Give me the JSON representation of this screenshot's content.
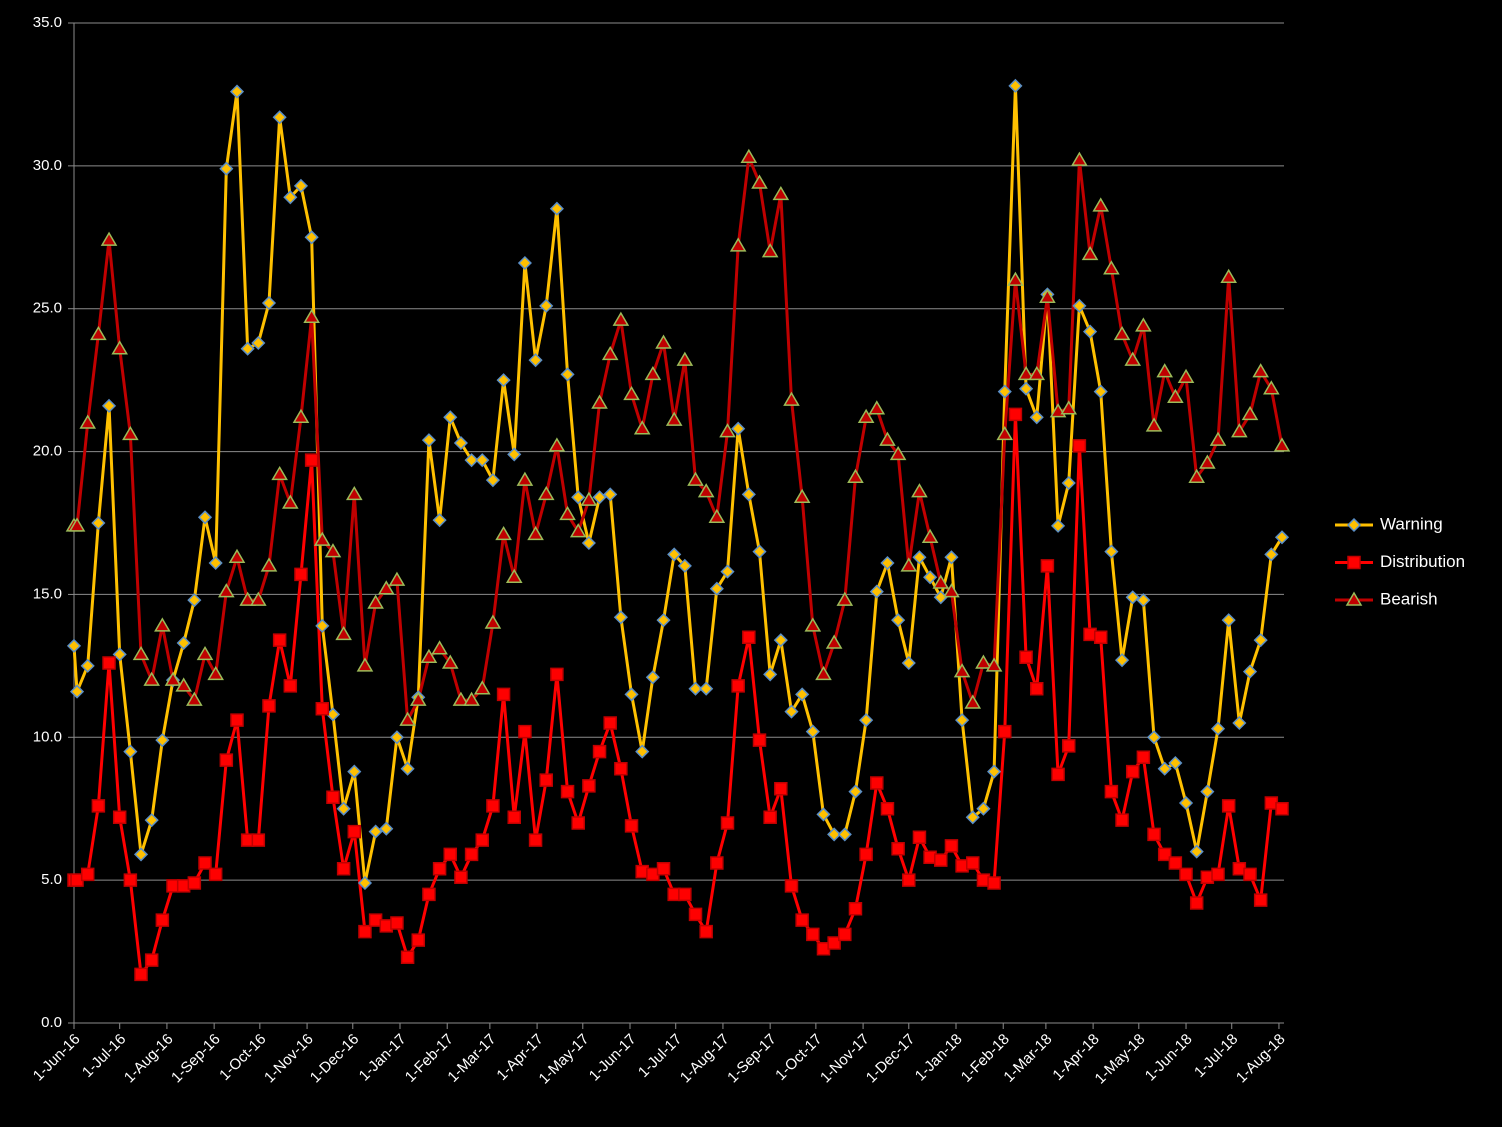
{
  "chart_data": {
    "type": "line",
    "x": [
      "2016-06-01",
      "2016-06-03",
      "2016-06-10",
      "2016-06-17",
      "2016-06-24",
      "2016-07-01",
      "2016-07-08",
      "2016-07-15",
      "2016-07-22",
      "2016-07-29",
      "2016-08-05",
      "2016-08-12",
      "2016-08-19",
      "2016-08-26",
      "2016-09-02",
      "2016-09-09",
      "2016-09-16",
      "2016-09-23",
      "2016-09-30",
      "2016-10-07",
      "2016-10-14",
      "2016-10-21",
      "2016-10-28",
      "2016-11-04",
      "2016-11-11",
      "2016-11-18",
      "2016-11-25",
      "2016-12-02",
      "2016-12-09",
      "2016-12-16",
      "2016-12-23",
      "2016-12-30",
      "2017-01-06",
      "2017-01-13",
      "2017-01-20",
      "2017-01-27",
      "2017-02-03",
      "2017-02-10",
      "2017-02-17",
      "2017-02-24",
      "2017-03-03",
      "2017-03-10",
      "2017-03-17",
      "2017-03-24",
      "2017-03-31",
      "2017-04-07",
      "2017-04-14",
      "2017-04-21",
      "2017-04-28",
      "2017-05-05",
      "2017-05-12",
      "2017-05-19",
      "2017-05-26",
      "2017-06-02",
      "2017-06-09",
      "2017-06-16",
      "2017-06-23",
      "2017-06-30",
      "2017-07-07",
      "2017-07-14",
      "2017-07-21",
      "2017-07-28",
      "2017-08-04",
      "2017-08-11",
      "2017-08-18",
      "2017-08-25",
      "2017-09-01",
      "2017-09-08",
      "2017-09-15",
      "2017-09-22",
      "2017-09-29",
      "2017-10-06",
      "2017-10-13",
      "2017-10-20",
      "2017-10-27",
      "2017-11-03",
      "2017-11-10",
      "2017-11-17",
      "2017-11-24",
      "2017-12-01",
      "2017-12-08",
      "2017-12-15",
      "2017-12-22",
      "2017-12-29",
      "2018-01-05",
      "2018-01-12",
      "2018-01-19",
      "2018-01-26",
      "2018-02-02",
      "2018-02-09",
      "2018-02-16",
      "2018-02-23",
      "2018-03-02",
      "2018-03-09",
      "2018-03-16",
      "2018-03-23",
      "2018-03-30",
      "2018-04-06",
      "2018-04-13",
      "2018-04-20",
      "2018-04-27",
      "2018-05-04",
      "2018-05-11",
      "2018-05-18",
      "2018-05-25",
      "2018-06-01",
      "2018-06-08",
      "2018-06-15",
      "2018-06-22",
      "2018-06-29",
      "2018-07-06",
      "2018-07-13",
      "2018-07-20",
      "2018-07-27",
      "2018-08-03"
    ],
    "series": [
      {
        "name": "Warning",
        "color": "#ffc000",
        "marker": "diamond",
        "marker_edge": "#5b8fc7",
        "values": [
          13.2,
          11.6,
          12.5,
          17.5,
          21.6,
          12.9,
          9.5,
          5.9,
          7.1,
          9.9,
          12.0,
          13.3,
          14.8,
          17.7,
          16.1,
          29.9,
          32.6,
          23.6,
          23.8,
          25.2,
          31.7,
          28.9,
          29.3,
          27.5,
          13.9,
          10.8,
          7.5,
          8.8,
          4.9,
          6.7,
          6.8,
          10.0,
          8.9,
          11.4,
          20.4,
          17.6,
          21.2,
          20.3,
          19.7,
          19.7,
          19.0,
          22.5,
          19.9,
          26.6,
          23.2,
          25.1,
          28.5,
          22.7,
          18.4,
          16.8,
          18.4,
          18.5,
          14.2,
          11.5,
          9.5,
          12.1,
          14.1,
          16.4,
          16.0,
          11.7,
          11.7,
          15.2,
          15.8,
          20.8,
          18.5,
          16.5,
          12.2,
          13.4,
          10.9,
          11.5,
          10.2,
          7.3,
          6.6,
          6.6,
          8.1,
          10.6,
          15.1,
          16.1,
          14.1,
          12.6,
          16.3,
          15.6,
          14.9,
          16.3,
          10.6,
          7.2,
          7.5,
          8.8,
          22.1,
          32.8,
          22.2,
          21.2,
          25.5,
          17.4,
          18.9,
          25.1,
          24.2,
          22.1,
          16.5,
          12.7,
          14.9,
          14.8,
          10.0,
          8.9,
          9.1,
          7.7,
          6.0,
          8.1,
          10.3,
          14.1,
          10.5,
          12.3,
          13.4,
          16.4,
          17.0
        ]
      },
      {
        "name": "Distribution",
        "color": "#ff0000",
        "marker": "square",
        "marker_edge": "#c00000",
        "values": [
          5.0,
          5.0,
          5.2,
          7.6,
          12.6,
          7.2,
          5.0,
          1.7,
          2.2,
          3.6,
          4.8,
          4.8,
          4.9,
          5.6,
          5.2,
          9.2,
          10.6,
          6.4,
          6.4,
          11.1,
          13.4,
          11.8,
          15.7,
          19.7,
          11.0,
          7.9,
          5.4,
          6.7,
          3.2,
          3.6,
          3.4,
          3.5,
          2.3,
          2.9,
          4.5,
          5.4,
          5.9,
          5.1,
          5.9,
          6.4,
          7.6,
          11.5,
          7.2,
          10.2,
          6.4,
          8.5,
          12.2,
          8.1,
          7.0,
          8.3,
          9.5,
          10.5,
          8.9,
          6.9,
          5.3,
          5.2,
          5.4,
          4.5,
          4.5,
          3.8,
          3.2,
          5.6,
          7.0,
          11.8,
          13.5,
          9.9,
          7.2,
          8.2,
          4.8,
          3.6,
          3.1,
          2.6,
          2.8,
          3.1,
          4.0,
          5.9,
          8.4,
          7.5,
          6.1,
          5.0,
          6.5,
          5.8,
          5.7,
          6.2,
          5.5,
          5.6,
          5.0,
          4.9,
          10.2,
          21.3,
          12.8,
          11.7,
          16.0,
          8.7,
          9.7,
          20.2,
          13.6,
          13.5,
          8.1,
          7.1,
          8.8,
          9.3,
          6.6,
          5.9,
          5.6,
          5.2,
          4.2,
          5.1,
          5.2,
          7.6,
          5.4,
          5.2,
          4.3,
          7.7,
          7.5
        ]
      },
      {
        "name": "Bearish",
        "color": "#c00000",
        "marker": "triangle",
        "marker_edge": "#9bbb59",
        "values": [
          17.4,
          17.4,
          21.0,
          24.1,
          27.4,
          23.6,
          20.6,
          12.9,
          12.0,
          13.9,
          12.0,
          11.8,
          11.3,
          12.9,
          12.2,
          15.1,
          16.3,
          14.8,
          14.8,
          16.0,
          19.2,
          18.2,
          21.2,
          24.7,
          16.9,
          16.5,
          13.6,
          18.5,
          12.5,
          14.7,
          15.2,
          15.5,
          10.6,
          11.3,
          12.8,
          13.1,
          12.6,
          11.3,
          11.3,
          11.7,
          14.0,
          17.1,
          15.6,
          19.0,
          17.1,
          18.5,
          20.2,
          17.8,
          17.2,
          18.3,
          21.7,
          23.4,
          24.6,
          22.0,
          20.8,
          22.7,
          23.8,
          21.1,
          23.2,
          19.0,
          18.6,
          17.7,
          20.7,
          27.2,
          30.3,
          29.4,
          27.0,
          29.0,
          21.8,
          18.4,
          13.9,
          12.2,
          13.3,
          14.8,
          19.1,
          21.2,
          21.5,
          20.4,
          19.9,
          16.0,
          18.6,
          17.0,
          15.4,
          15.1,
          12.3,
          11.2,
          12.6,
          12.5,
          20.6,
          26.0,
          22.7,
          22.7,
          25.4,
          21.4,
          21.5,
          30.2,
          26.9,
          28.6,
          26.4,
          24.1,
          23.2,
          24.4,
          20.9,
          22.8,
          21.9,
          22.6,
          19.1,
          19.6,
          20.4,
          26.1,
          20.7,
          21.3,
          22.8,
          22.2,
          20.2
        ]
      }
    ],
    "xlim": [
      "2016-06-01",
      "2018-08-03"
    ],
    "xticks": [
      {
        "value": "2016-06-01",
        "label": "1-Jun-16"
      },
      {
        "value": "2016-07-01",
        "label": "1-Jul-16"
      },
      {
        "value": "2016-08-01",
        "label": "1-Aug-16"
      },
      {
        "value": "2016-09-01",
        "label": "1-Sep-16"
      },
      {
        "value": "2016-10-01",
        "label": "1-Oct-16"
      },
      {
        "value": "2016-11-01",
        "label": "1-Nov-16"
      },
      {
        "value": "2016-12-01",
        "label": "1-Dec-16"
      },
      {
        "value": "2017-01-01",
        "label": "1-Jan-17"
      },
      {
        "value": "2017-02-01",
        "label": "1-Feb-17"
      },
      {
        "value": "2017-03-01",
        "label": "1-Mar-17"
      },
      {
        "value": "2017-04-01",
        "label": "1-Apr-17"
      },
      {
        "value": "2017-05-01",
        "label": "1-May-17"
      },
      {
        "value": "2017-06-01",
        "label": "1-Jun-17"
      },
      {
        "value": "2017-07-01",
        "label": "1-Jul-17"
      },
      {
        "value": "2017-08-01",
        "label": "1-Aug-17"
      },
      {
        "value": "2017-09-01",
        "label": "1-Sep-17"
      },
      {
        "value": "2017-10-01",
        "label": "1-Oct-17"
      },
      {
        "value": "2017-11-01",
        "label": "1-Nov-17"
      },
      {
        "value": "2017-12-01",
        "label": "1-Dec-17"
      },
      {
        "value": "2018-01-01",
        "label": "1-Jan-18"
      },
      {
        "value": "2018-02-01",
        "label": "1-Feb-18"
      },
      {
        "value": "2018-03-01",
        "label": "1-Mar-18"
      },
      {
        "value": "2018-04-01",
        "label": "1-Apr-18"
      },
      {
        "value": "2018-05-01",
        "label": "1-May-18"
      },
      {
        "value": "2018-06-01",
        "label": "1-Jun-18"
      },
      {
        "value": "2018-07-01",
        "label": "1-Jul-18"
      },
      {
        "value": "2018-08-01",
        "label": "1-Aug-18"
      }
    ],
    "ylim": [
      0,
      35
    ],
    "yticks": [
      {
        "value": 0,
        "label": "0.0"
      },
      {
        "value": 5,
        "label": "5.0"
      },
      {
        "value": 10,
        "label": "10.0"
      },
      {
        "value": 15,
        "label": "15.0"
      },
      {
        "value": 20,
        "label": "20.0"
      },
      {
        "value": 25,
        "label": "25.0"
      },
      {
        "value": 30,
        "label": "30.0"
      },
      {
        "value": 35,
        "label": "35.0"
      }
    ],
    "grid": true,
    "legend": "right"
  }
}
